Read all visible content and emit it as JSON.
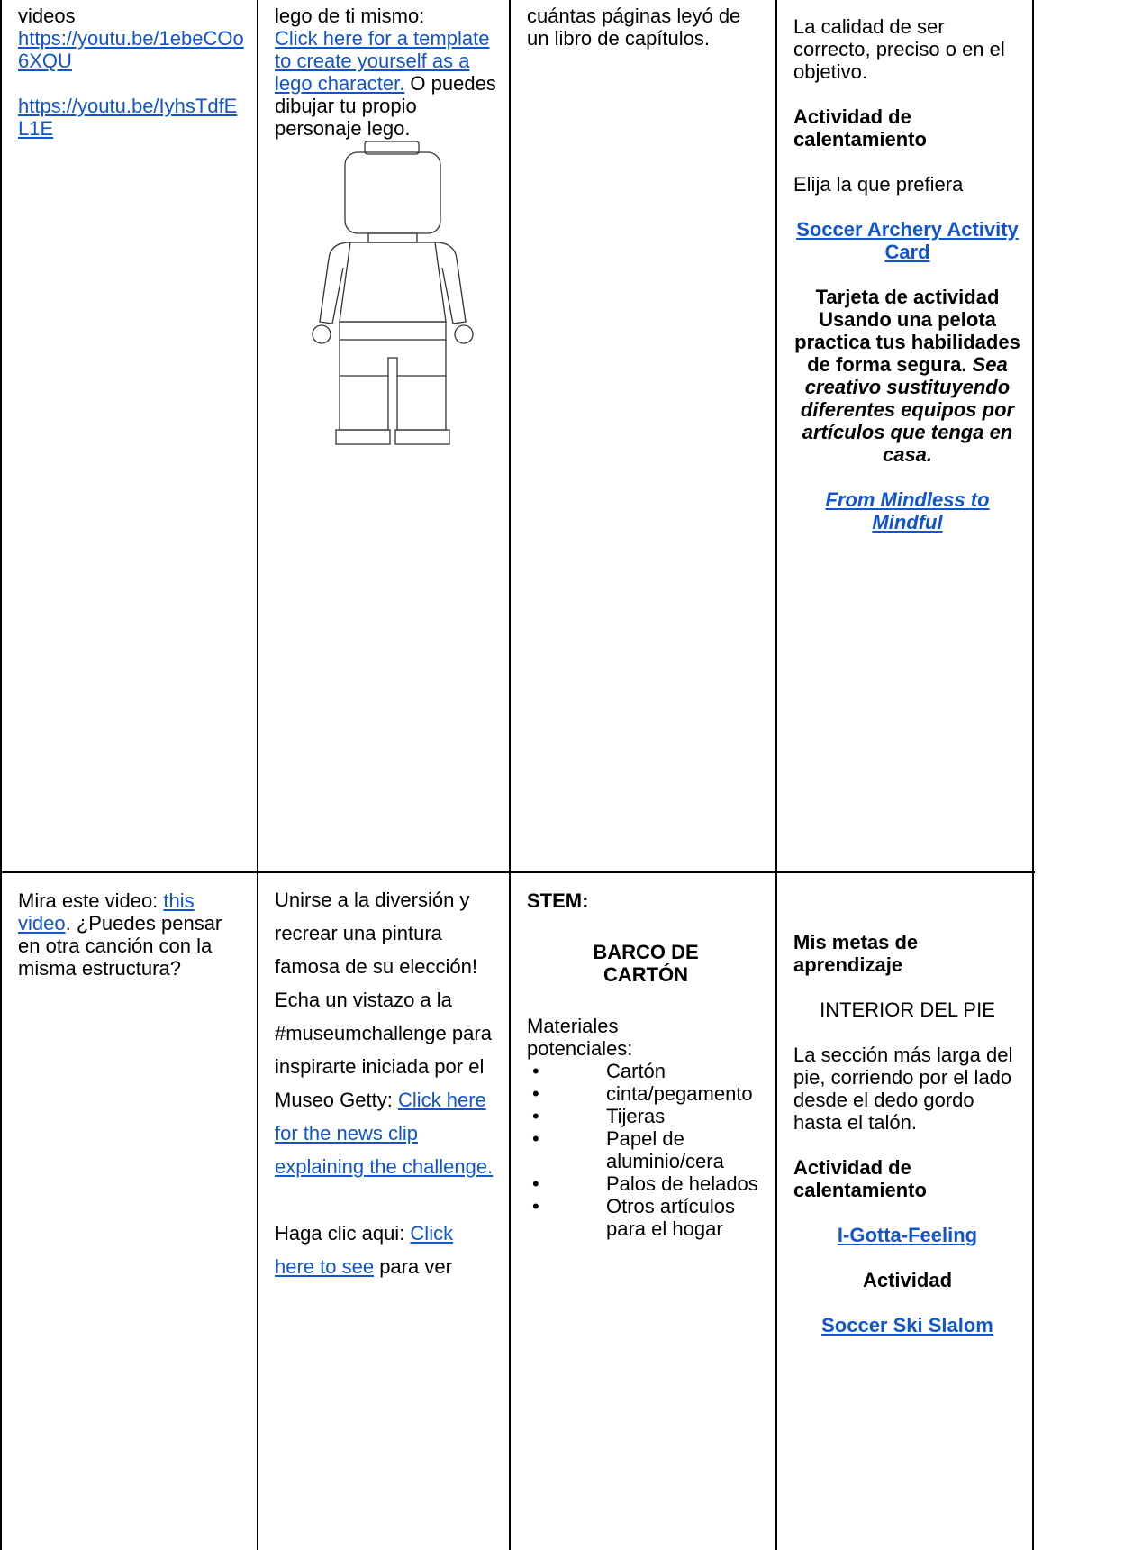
{
  "table": {
    "rows": [
      [
        [
          "videos",
          "https://youtu.be/1ebeCOo6XQU",
          "https://youtu.be/IyhsTdfEL1E"
        ],
        [
          "lego de ti mismo:",
          "Click here for a template to create yourself as a lego character.",
          " O puedes dibujar tu propio personaje lego."
        ],
        [
          "cuántas páginas leyó de un libro de capítulos."
        ],
        [
          "La calidad de ser correcto, preciso o en el objetivo.",
          "Actividad de calentamiento",
          "Elija la que prefiera",
          "Soccer Archery Activity Card",
          "Tarjeta de actividad Usando una pelota practica tus habilidades de forma segura.",
          "Sea creativo sustituyendo diferentes equipos por artículos que tenga en casa.",
          "From Mindless to Mindful"
        ]
      ],
      [
        [
          "Mira este video: ",
          "this video",
          ". ¿Puedes pensar en otra canción con la misma estructura?"
        ],
        [
          "Unirse a la diversión y recrear una pintura famosa de su elección!",
          "Echa un vistazo a la #museumchallenge para inspirarte iniciada por el Museo Getty: ",
          "Click here for the news clip explaining the challenge.",
          "Haga clic aqui: ",
          "Click here to see",
          " para ver"
        ],
        [
          "STEM:",
          "BARCO DE CARTÓN",
          "Materiales potenciales:",
          "Cartón",
          "cinta/pegamento",
          "Tijeras",
          "Papel de aluminio/cera",
          "Palos de helados",
          "Otros artículos para el hogar"
        ],
        [
          "Mis metas de aprendizaje",
          "INTERIOR DEL PIE",
          "La sección más larga del pie, corriendo por el lado desde el dedo gordo hasta el talón.",
          "Actividad de calentamiento",
          "I-Gotta-Feeling",
          "Actividad",
          "Soccer Ski Slalom"
        ]
      ]
    ]
  }
}
